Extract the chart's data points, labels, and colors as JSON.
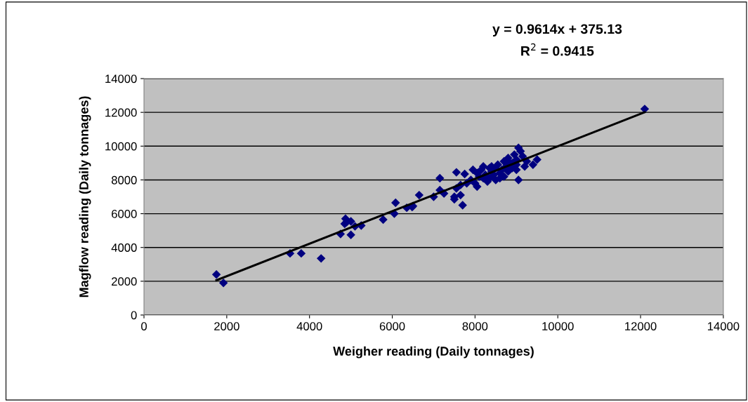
{
  "chart_data": {
    "type": "scatter",
    "xlabel": "Weigher reading (Daily tonnages)",
    "ylabel": "Magflow reading (Daily tonnages)",
    "annotations": [
      "y = 0.9614x + 375.13",
      "R$^{2}$ = 0.9415"
    ],
    "xlim": [
      0,
      14000
    ],
    "xticks": [
      0,
      2000,
      4000,
      6000,
      8000,
      10000,
      12000,
      14000
    ],
    "ylim": [
      0,
      14000
    ],
    "yticks": [
      0,
      2000,
      4000,
      6000,
      8000,
      10000,
      12000,
      14000
    ],
    "grid": "y",
    "legend": false,
    "series": [
      {
        "color": "#000080",
        "marker": "diamond",
        "x": [
          1750,
          1920,
          3530,
          3800,
          4280,
          4750,
          4850,
          4870,
          4900,
          5000,
          5000,
          5100,
          5250,
          5780,
          6050,
          6080,
          6350,
          6480,
          6500,
          6650,
          7000,
          7150,
          7150,
          7250,
          7500,
          7500,
          7550,
          7550,
          7650,
          7650,
          7700,
          7750,
          7800,
          7900,
          7950,
          8000,
          8050,
          8050,
          8100,
          8150,
          8200,
          8250,
          8300,
          8350,
          8400,
          8400,
          8450,
          8500,
          8500,
          8550,
          8600,
          8650,
          8700,
          8700,
          8750,
          8800,
          8800,
          8850,
          8900,
          8950,
          9000,
          9000,
          9050,
          9050,
          9100,
          9150,
          9200,
          9250,
          9400,
          9500,
          12100,
          8350,
          8600,
          8900,
          9000,
          8200
        ],
        "values": [
          2400,
          1900,
          3650,
          3650,
          3350,
          4800,
          5400,
          5700,
          5500,
          5550,
          4750,
          5250,
          5300,
          5650,
          6000,
          6650,
          6350,
          6400,
          6450,
          7100,
          7000,
          8100,
          7400,
          7200,
          7000,
          6850,
          8450,
          7500,
          7700,
          7100,
          6500,
          8350,
          7800,
          8000,
          8600,
          7800,
          8400,
          7600,
          8200,
          8600,
          8800,
          8300,
          7900,
          8100,
          8500,
          8800,
          8300,
          8000,
          8700,
          8900,
          8400,
          8600,
          9100,
          8200,
          8800,
          9300,
          8500,
          9000,
          8700,
          9500,
          9200,
          8600,
          9900,
          8000,
          9700,
          9400,
          8800,
          9100,
          8900,
          9200,
          12200,
          8700,
          8100,
          9000,
          8900,
          8100
        ]
      },
      {
        "type": "line",
        "color": "#000000",
        "line_style": "solid",
        "marker": "none",
        "x": [
          1750,
          12100
        ],
        "values": [
          2060,
          12010
        ]
      }
    ]
  }
}
